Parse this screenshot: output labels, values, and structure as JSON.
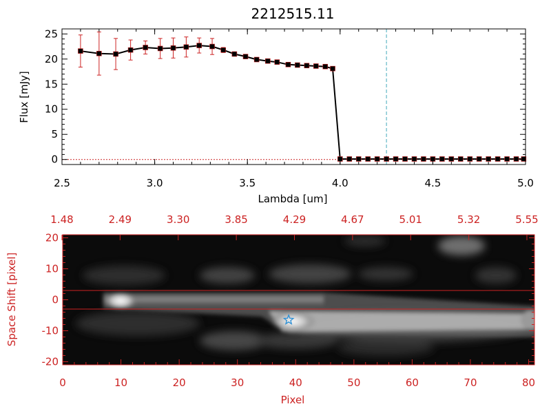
{
  "chart_data": [
    {
      "type": "line",
      "title": "2212515.11",
      "xlabel": "Lambda [um]",
      "ylabel": "Flux [mJy]",
      "xlim": [
        2.5,
        5.0
      ],
      "ylim": [
        -1,
        26
      ],
      "x_ticks": [
        "2.5",
        "3.0",
        "3.5",
        "4.0",
        "4.5",
        "5.0"
      ],
      "y_ticks": [
        "0",
        "5",
        "10",
        "15",
        "20",
        "25"
      ],
      "marker_line_x": 4.25,
      "colors": {
        "line": "#000000",
        "errorbar": "#cc2222",
        "marker_line": "#44aabb",
        "zero_line": "#cc2222"
      },
      "series": [
        {
          "x": [
            2.6,
            2.7,
            2.79,
            2.87,
            2.95,
            3.03,
            3.1,
            3.17,
            3.24,
            3.31,
            3.37,
            3.43,
            3.49,
            3.55,
            3.61,
            3.66,
            3.72,
            3.77,
            3.82,
            3.87,
            3.92,
            3.96,
            4.0,
            4.05,
            4.1,
            4.15,
            4.2,
            4.25,
            4.3,
            4.35,
            4.4,
            4.45,
            4.5,
            4.55,
            4.6,
            4.65,
            4.7,
            4.75,
            4.8,
            4.85,
            4.9,
            4.95,
            4.99
          ],
          "y": [
            21.6,
            21.1,
            21.0,
            21.8,
            22.3,
            22.1,
            22.2,
            22.4,
            22.7,
            22.5,
            21.8,
            21.0,
            20.5,
            19.9,
            19.6,
            19.4,
            18.9,
            18.8,
            18.7,
            18.6,
            18.5,
            18.1,
            0.1,
            0.1,
            0.1,
            0.1,
            0.1,
            0.1,
            0.1,
            0.1,
            0.1,
            0.1,
            0.1,
            0.1,
            0.1,
            0.1,
            0.1,
            0.1,
            0.1,
            0.1,
            0.1,
            0.1,
            0.1
          ],
          "yerr": [
            3.2,
            4.3,
            3.1,
            2.0,
            1.3,
            2.0,
            2.0,
            2.0,
            1.5,
            1.6,
            0.5,
            0.4,
            0.3,
            0.2,
            0.2,
            0.2,
            0.2,
            0.2,
            0.2,
            0.2,
            0.2,
            0.2,
            0.1,
            0.1,
            0.1,
            0.1,
            0.1,
            0.1,
            0.1,
            0.1,
            0.1,
            0.1,
            0.1,
            0.1,
            0.1,
            0.1,
            0.1,
            0.1,
            0.1,
            0.1,
            0.1,
            0.1,
            0.1
          ]
        }
      ]
    },
    {
      "type": "heatmap",
      "xlabel": "Pixel",
      "ylabel": "Space Shift [pixel]",
      "xlim": [
        0,
        81
      ],
      "ylim": [
        -21,
        21
      ],
      "x_ticks": [
        "0",
        "10",
        "20",
        "30",
        "40",
        "50",
        "60",
        "70",
        "80"
      ],
      "y_ticks": [
        "-20",
        "-10",
        "0",
        "10",
        "20"
      ],
      "top_ticks": [
        "1.48",
        "2.49",
        "3.30",
        "3.85",
        "4.29",
        "4.67",
        "5.01",
        "5.32",
        "5.55"
      ],
      "aperture_lines_y": [
        3,
        -3
      ],
      "star_marker": {
        "x": 38.8,
        "y": -6.5
      },
      "colors": {
        "axes": "#cc2222",
        "star": "#2a8fd6",
        "aperture": "#cc2222"
      }
    }
  ]
}
